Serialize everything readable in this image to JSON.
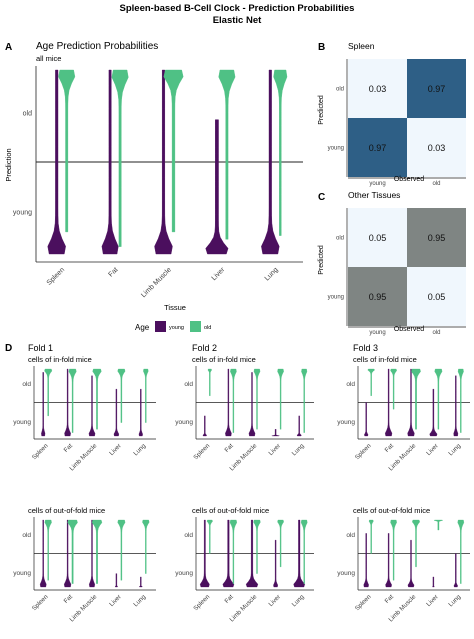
{
  "figure": {
    "title": "Spleen-based B-Cell Clock - Prediction Probabilities",
    "subtitle": "Elastic Net"
  },
  "colors": {
    "young": "#4b0f5e",
    "old": "#4fc185",
    "heat_dark": "#2e5f86",
    "heat_light": "#f0f7fd",
    "heat_grey": "#7f8583"
  },
  "chart_data": [
    {
      "id": "A",
      "type": "violin",
      "panel_letter": "A",
      "title": "Age Prediction Probabilities",
      "subtitle": "all mice",
      "categories": [
        "Spleen",
        "Fat",
        "Limb Muscle",
        "Liver",
        "Lung"
      ],
      "xlabel": "Tissue",
      "ylabel": "Prediction",
      "yticks": [
        "young",
        "old"
      ],
      "ylim": [
        0,
        1
      ],
      "threshold": 0.5,
      "series": [
        {
          "name": "young",
          "width_young_end": [
            0.6,
            0.55,
            0.6,
            0.75,
            0.6
          ],
          "extent": [
            [
              0,
              1
            ],
            [
              0,
              1
            ],
            [
              0,
              1
            ],
            [
              0,
              0.73
            ],
            [
              0,
              1
            ]
          ]
        },
        {
          "name": "old",
          "width_old_end": [
            0.55,
            0.55,
            0.65,
            0.55,
            0.45
          ],
          "extent": [
            [
              0.12,
              1
            ],
            [
              0.04,
              1
            ],
            [
              0.12,
              1
            ],
            [
              0.08,
              1
            ],
            [
              0.1,
              1
            ]
          ]
        }
      ],
      "legend": {
        "title": "Age",
        "items": [
          "young",
          "old"
        ],
        "position": "bottom"
      }
    },
    {
      "id": "B",
      "type": "heatmap",
      "panel_letter": "B",
      "title": "Spleen",
      "xlabel": "Observed",
      "ylabel": "Predicted",
      "xticks": [
        "young",
        "old"
      ],
      "yticks": [
        "old",
        "young"
      ],
      "cells": [
        [
          "0.03",
          "0.97"
        ],
        [
          "0.97",
          "0.03"
        ]
      ],
      "cell_colors": [
        [
          "heat_light",
          "heat_dark"
        ],
        [
          "heat_dark",
          "heat_light"
        ]
      ]
    },
    {
      "id": "C",
      "type": "heatmap",
      "panel_letter": "C",
      "title": "Other Tissues",
      "xlabel": "Observed",
      "ylabel": "Predicted",
      "xticks": [
        "young",
        "old"
      ],
      "yticks": [
        "old",
        "young"
      ],
      "cells": [
        [
          "0.05",
          "0.95"
        ],
        [
          "0.95",
          "0.05"
        ]
      ],
      "cell_colors": [
        [
          "heat_light",
          "heat_grey"
        ],
        [
          "heat_grey",
          "heat_light"
        ]
      ]
    }
  ],
  "folds": {
    "panel_letter": "D",
    "titles": [
      "Fold 1",
      "Fold 2",
      "Fold 3"
    ],
    "in_fold_label": "cells of in-fold mice",
    "out_fold_label": "cells of out-of-fold mice",
    "categories": [
      "Spleen",
      "Fat",
      "Limb Muscle",
      "Liver",
      "Lung"
    ],
    "yticks": [
      "young",
      "old"
    ],
    "panels": [
      {
        "fold": 1,
        "set": "in-fold",
        "young": [
          [
            0,
            0.95,
            0.3
          ],
          [
            0,
            1,
            0.5
          ],
          [
            0,
            0.9,
            0.5
          ],
          [
            0,
            0.7,
            0.4
          ],
          [
            0,
            0.7,
            0.3
          ]
        ],
        "old": [
          [
            0.3,
            1,
            0.6
          ],
          [
            0.05,
            1,
            0.6
          ],
          [
            0.1,
            1,
            0.7
          ],
          [
            0.2,
            1,
            0.6
          ],
          [
            0.2,
            1,
            0.4
          ]
        ]
      },
      {
        "fold": 2,
        "set": "in-fold",
        "young": [
          [
            0,
            0.3,
            0.3
          ],
          [
            0,
            1,
            0.5
          ],
          [
            0,
            0.95,
            0.5
          ],
          [
            0,
            0.1,
            0.6
          ],
          [
            0,
            0.3,
            0.35
          ]
        ],
        "old": [
          [
            0.6,
            1,
            0.3
          ],
          [
            0.05,
            1,
            0.5
          ],
          [
            0.1,
            1,
            0.5
          ],
          [
            0.1,
            1,
            0.5
          ],
          [
            0.05,
            1,
            0.45
          ]
        ]
      },
      {
        "fold": 3,
        "set": "in-fold",
        "young": [
          [
            0,
            0.5,
            0.3
          ],
          [
            0,
            1,
            0.55
          ],
          [
            0,
            1,
            0.55
          ],
          [
            0,
            0.7,
            0.6
          ],
          [
            0,
            0.9,
            0.35
          ]
        ],
        "old": [
          [
            0.6,
            1,
            0.55
          ],
          [
            0.4,
            1,
            0.5
          ],
          [
            0.1,
            1,
            0.75
          ],
          [
            0.1,
            1,
            0.6
          ],
          [
            0.05,
            1,
            0.45
          ]
        ]
      },
      {
        "fold": 1,
        "set": "out-of-fold",
        "young": [
          [
            0,
            1,
            0.5
          ],
          [
            0,
            1,
            0.55
          ],
          [
            0,
            1,
            0.45
          ],
          [
            0,
            0.2,
            0.2
          ],
          [
            0,
            0.15,
            0.25
          ]
        ],
        "old": [
          [
            0.1,
            1,
            0.55
          ],
          [
            0.05,
            1,
            0.8
          ],
          [
            0.05,
            1,
            0.8
          ],
          [
            0.1,
            1,
            0.6
          ],
          [
            0.2,
            1,
            0.55
          ]
        ]
      },
      {
        "fold": 2,
        "set": "out-of-fold",
        "young": [
          [
            0,
            1,
            0.75
          ],
          [
            0,
            1,
            0.9
          ],
          [
            0,
            1,
            0.95
          ],
          [
            0,
            0.7,
            0.35
          ],
          [
            0,
            1,
            0.9
          ]
        ],
        "old": [
          [
            0.5,
            1,
            0.45
          ],
          [
            0.05,
            1,
            0.55
          ],
          [
            0.2,
            1,
            0.55
          ],
          [
            0.3,
            1,
            0.5
          ],
          [
            0.05,
            1,
            0.5
          ]
        ]
      },
      {
        "fold": 3,
        "set": "out-of-fold",
        "young": [
          [
            0,
            0.8,
            0.4
          ],
          [
            0,
            0.8,
            0.5
          ],
          [
            0,
            0.7,
            0.5
          ],
          [
            0,
            0.15,
            0.15
          ],
          [
            0,
            0.5,
            0.3
          ]
        ],
        "old": [
          [
            0.5,
            1,
            0.35
          ],
          [
            0.1,
            1,
            0.5
          ],
          [
            0.3,
            1,
            0.6
          ],
          [
            0.85,
            1,
            0.7
          ],
          [
            0.05,
            1,
            0.5
          ]
        ]
      }
    ]
  }
}
